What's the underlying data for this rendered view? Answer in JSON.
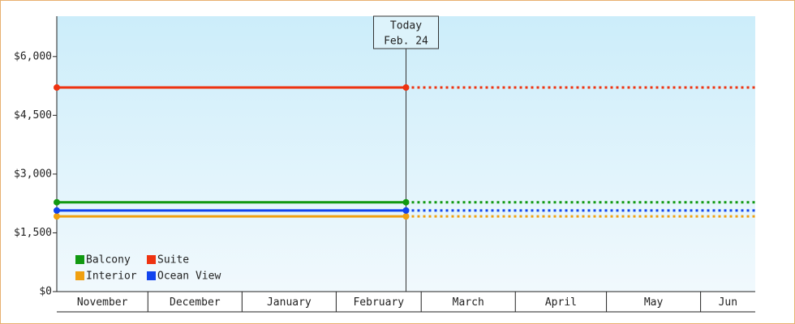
{
  "chart_data": {
    "type": "line",
    "x": [
      0,
      115
    ],
    "xlim": [
      0,
      230
    ],
    "xticks": [
      {
        "value": 0,
        "label": "November"
      },
      {
        "value": 30,
        "label": "December"
      },
      {
        "value": 61,
        "label": "January"
      },
      {
        "value": 92,
        "label": "February"
      },
      {
        "value": 120,
        "label": "March"
      },
      {
        "value": 151,
        "label": "April"
      },
      {
        "value": 181,
        "label": "May"
      },
      {
        "value": 212,
        "label": "Jun"
      }
    ],
    "ylim": [
      0,
      7030
    ],
    "yticks": [
      {
        "value": 0,
        "label": "$0"
      },
      {
        "value": 1500,
        "label": "$1,500"
      },
      {
        "value": 3000,
        "label": "$3,000"
      },
      {
        "value": 4500,
        "label": "$4,500"
      },
      {
        "value": 6000,
        "label": "$6,000"
      }
    ],
    "series": [
      {
        "name": "Balcony",
        "color": "#119911",
        "values": [
          2280,
          2280
        ]
      },
      {
        "name": "Suite",
        "color": "#ee3311",
        "values": [
          5210,
          5210
        ]
      },
      {
        "name": "Interior",
        "color": "#f0a010",
        "values": [
          1920,
          1920
        ]
      },
      {
        "name": "Ocean View",
        "color": "#1144ee",
        "values": [
          2070,
          2070
        ]
      }
    ],
    "annotation": {
      "x": 115,
      "lines": [
        "Today",
        "Feb. 24"
      ]
    },
    "legend": "lower left"
  }
}
